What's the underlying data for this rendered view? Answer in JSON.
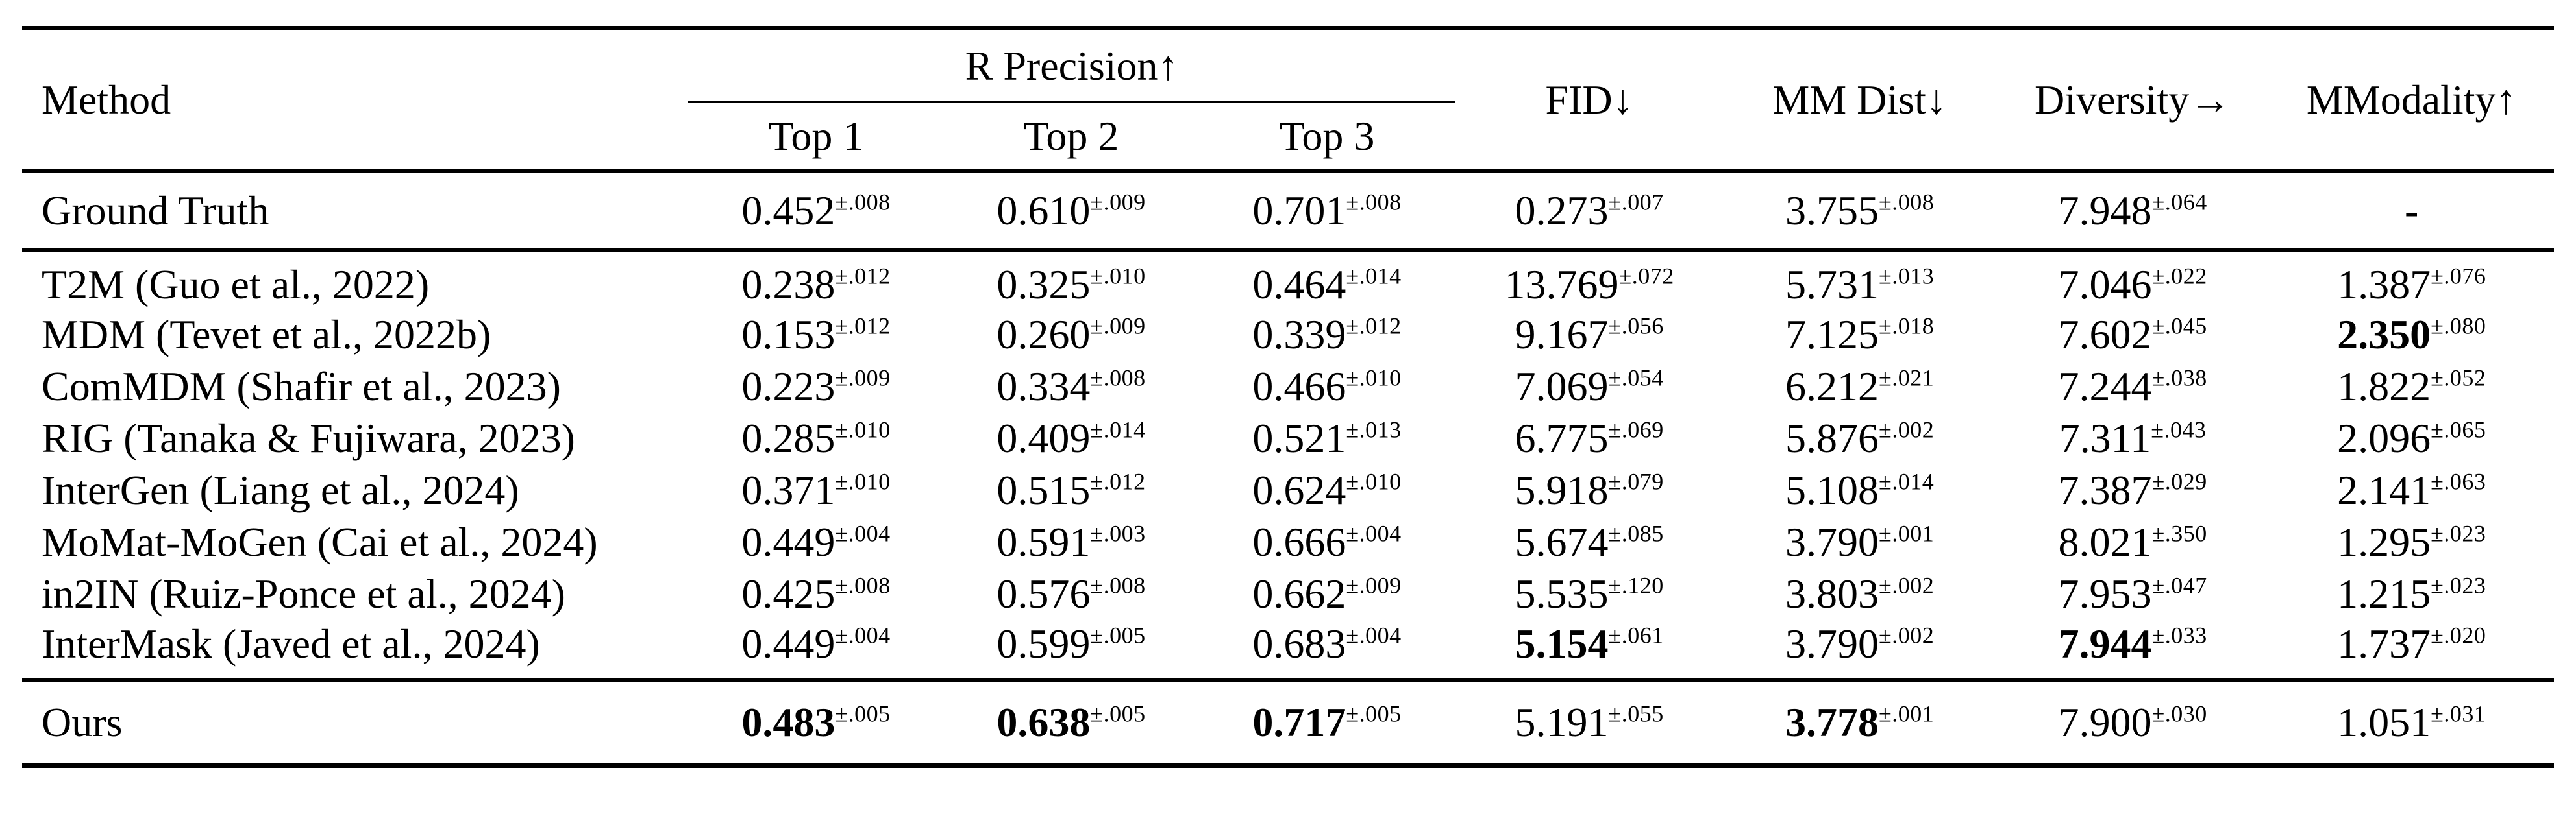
{
  "table": {
    "header": {
      "method": "Method",
      "r_precision_group": "R Precision↑",
      "top1": "Top 1",
      "top2": "Top 2",
      "top3": "Top 3",
      "fid": "FID↓",
      "mm_dist": "MM Dist↓",
      "diversity": "Diversity→",
      "mmodality": "MModality↑"
    },
    "colors": {
      "text": "#000000",
      "background": "#ffffff",
      "rule": "#000000"
    },
    "sections": {
      "ground_truth": {
        "rows": [
          {
            "method": "Ground Truth",
            "values": [
              {
                "v": "0.452",
                "e": "±.008"
              },
              {
                "v": "0.610",
                "e": "±.009"
              },
              {
                "v": "0.701",
                "e": "±.008"
              },
              {
                "v": "0.273",
                "e": "±.007"
              },
              {
                "v": "3.755",
                "e": "±.008"
              },
              {
                "v": "7.948",
                "e": "±.064"
              },
              {
                "v": "-"
              }
            ]
          }
        ]
      },
      "baselines": {
        "rows": [
          {
            "method": "T2M (Guo et al., 2022)",
            "values": [
              {
                "v": "0.238",
                "e": "±.012"
              },
              {
                "v": "0.325",
                "e": "±.010"
              },
              {
                "v": "0.464",
                "e": "±.014"
              },
              {
                "v": "13.769",
                "e": "±.072"
              },
              {
                "v": "5.731",
                "e": "±.013"
              },
              {
                "v": "7.046",
                "e": "±.022"
              },
              {
                "v": "1.387",
                "e": "±.076"
              }
            ]
          },
          {
            "method": "MDM (Tevet et al., 2022b)",
            "values": [
              {
                "v": "0.153",
                "e": "±.012"
              },
              {
                "v": "0.260",
                "e": "±.009"
              },
              {
                "v": "0.339",
                "e": "±.012"
              },
              {
                "v": "9.167",
                "e": "±.056"
              },
              {
                "v": "7.125",
                "e": "±.018"
              },
              {
                "v": "7.602",
                "e": "±.045"
              },
              {
                "v": "2.350",
                "e": "±.080",
                "b": true
              }
            ]
          },
          {
            "method": "ComMDM (Shafir et al., 2023)",
            "values": [
              {
                "v": "0.223",
                "e": "±.009"
              },
              {
                "v": "0.334",
                "e": "±.008"
              },
              {
                "v": "0.466",
                "e": "±.010"
              },
              {
                "v": "7.069",
                "e": "±.054"
              },
              {
                "v": "6.212",
                "e": "±.021"
              },
              {
                "v": "7.244",
                "e": "±.038"
              },
              {
                "v": "1.822",
                "e": "±.052"
              }
            ]
          },
          {
            "method": "RIG (Tanaka & Fujiwara, 2023)",
            "values": [
              {
                "v": "0.285",
                "e": "±.010"
              },
              {
                "v": "0.409",
                "e": "±.014"
              },
              {
                "v": "0.521",
                "e": "±.013"
              },
              {
                "v": "6.775",
                "e": "±.069"
              },
              {
                "v": "5.876",
                "e": "±.002"
              },
              {
                "v": "7.311",
                "e": "±.043"
              },
              {
                "v": "2.096",
                "e": "±.065"
              }
            ]
          },
          {
            "method": "InterGen (Liang et al., 2024)",
            "values": [
              {
                "v": "0.371",
                "e": "±.010"
              },
              {
                "v": "0.515",
                "e": "±.012"
              },
              {
                "v": "0.624",
                "e": "±.010"
              },
              {
                "v": "5.918",
                "e": "±.079"
              },
              {
                "v": "5.108",
                "e": "±.014"
              },
              {
                "v": "7.387",
                "e": "±.029"
              },
              {
                "v": "2.141",
                "e": "±.063"
              }
            ]
          },
          {
            "method": "MoMat-MoGen (Cai et al., 2024)",
            "values": [
              {
                "v": "0.449",
                "e": "±.004"
              },
              {
                "v": "0.591",
                "e": "±.003"
              },
              {
                "v": "0.666",
                "e": "±.004"
              },
              {
                "v": "5.674",
                "e": "±.085"
              },
              {
                "v": "3.790",
                "e": "±.001"
              },
              {
                "v": "8.021",
                "e": "±.350"
              },
              {
                "v": "1.295",
                "e": "±.023"
              }
            ]
          },
          {
            "method": "in2IN (Ruiz-Ponce et al., 2024)",
            "values": [
              {
                "v": "0.425",
                "e": "±.008"
              },
              {
                "v": "0.576",
                "e": "±.008"
              },
              {
                "v": "0.662",
                "e": "±.009"
              },
              {
                "v": "5.535",
                "e": "±.120"
              },
              {
                "v": "3.803",
                "e": "±.002"
              },
              {
                "v": "7.953",
                "e": "±.047"
              },
              {
                "v": "1.215",
                "e": "±.023"
              }
            ]
          },
          {
            "method": "InterMask (Javed et al., 2024)",
            "values": [
              {
                "v": "0.449",
                "e": "±.004"
              },
              {
                "v": "0.599",
                "e": "±.005"
              },
              {
                "v": "0.683",
                "e": "±.004"
              },
              {
                "v": "5.154",
                "e": "±.061",
                "b": true
              },
              {
                "v": "3.790",
                "e": "±.002"
              },
              {
                "v": "7.944",
                "e": "±.033",
                "b": true
              },
              {
                "v": "1.737",
                "e": "±.020"
              }
            ]
          }
        ]
      },
      "ours": {
        "rows": [
          {
            "method": "Ours",
            "values": [
              {
                "v": "0.483",
                "e": "±.005",
                "b": true
              },
              {
                "v": "0.638",
                "e": "±.005",
                "b": true
              },
              {
                "v": "0.717",
                "e": "±.005",
                "b": true
              },
              {
                "v": "5.191",
                "e": "±.055"
              },
              {
                "v": "3.778",
                "e": "±.001",
                "b": true
              },
              {
                "v": "7.900",
                "e": "±.030"
              },
              {
                "v": "1.051",
                "e": "±.031"
              }
            ]
          }
        ]
      }
    }
  }
}
